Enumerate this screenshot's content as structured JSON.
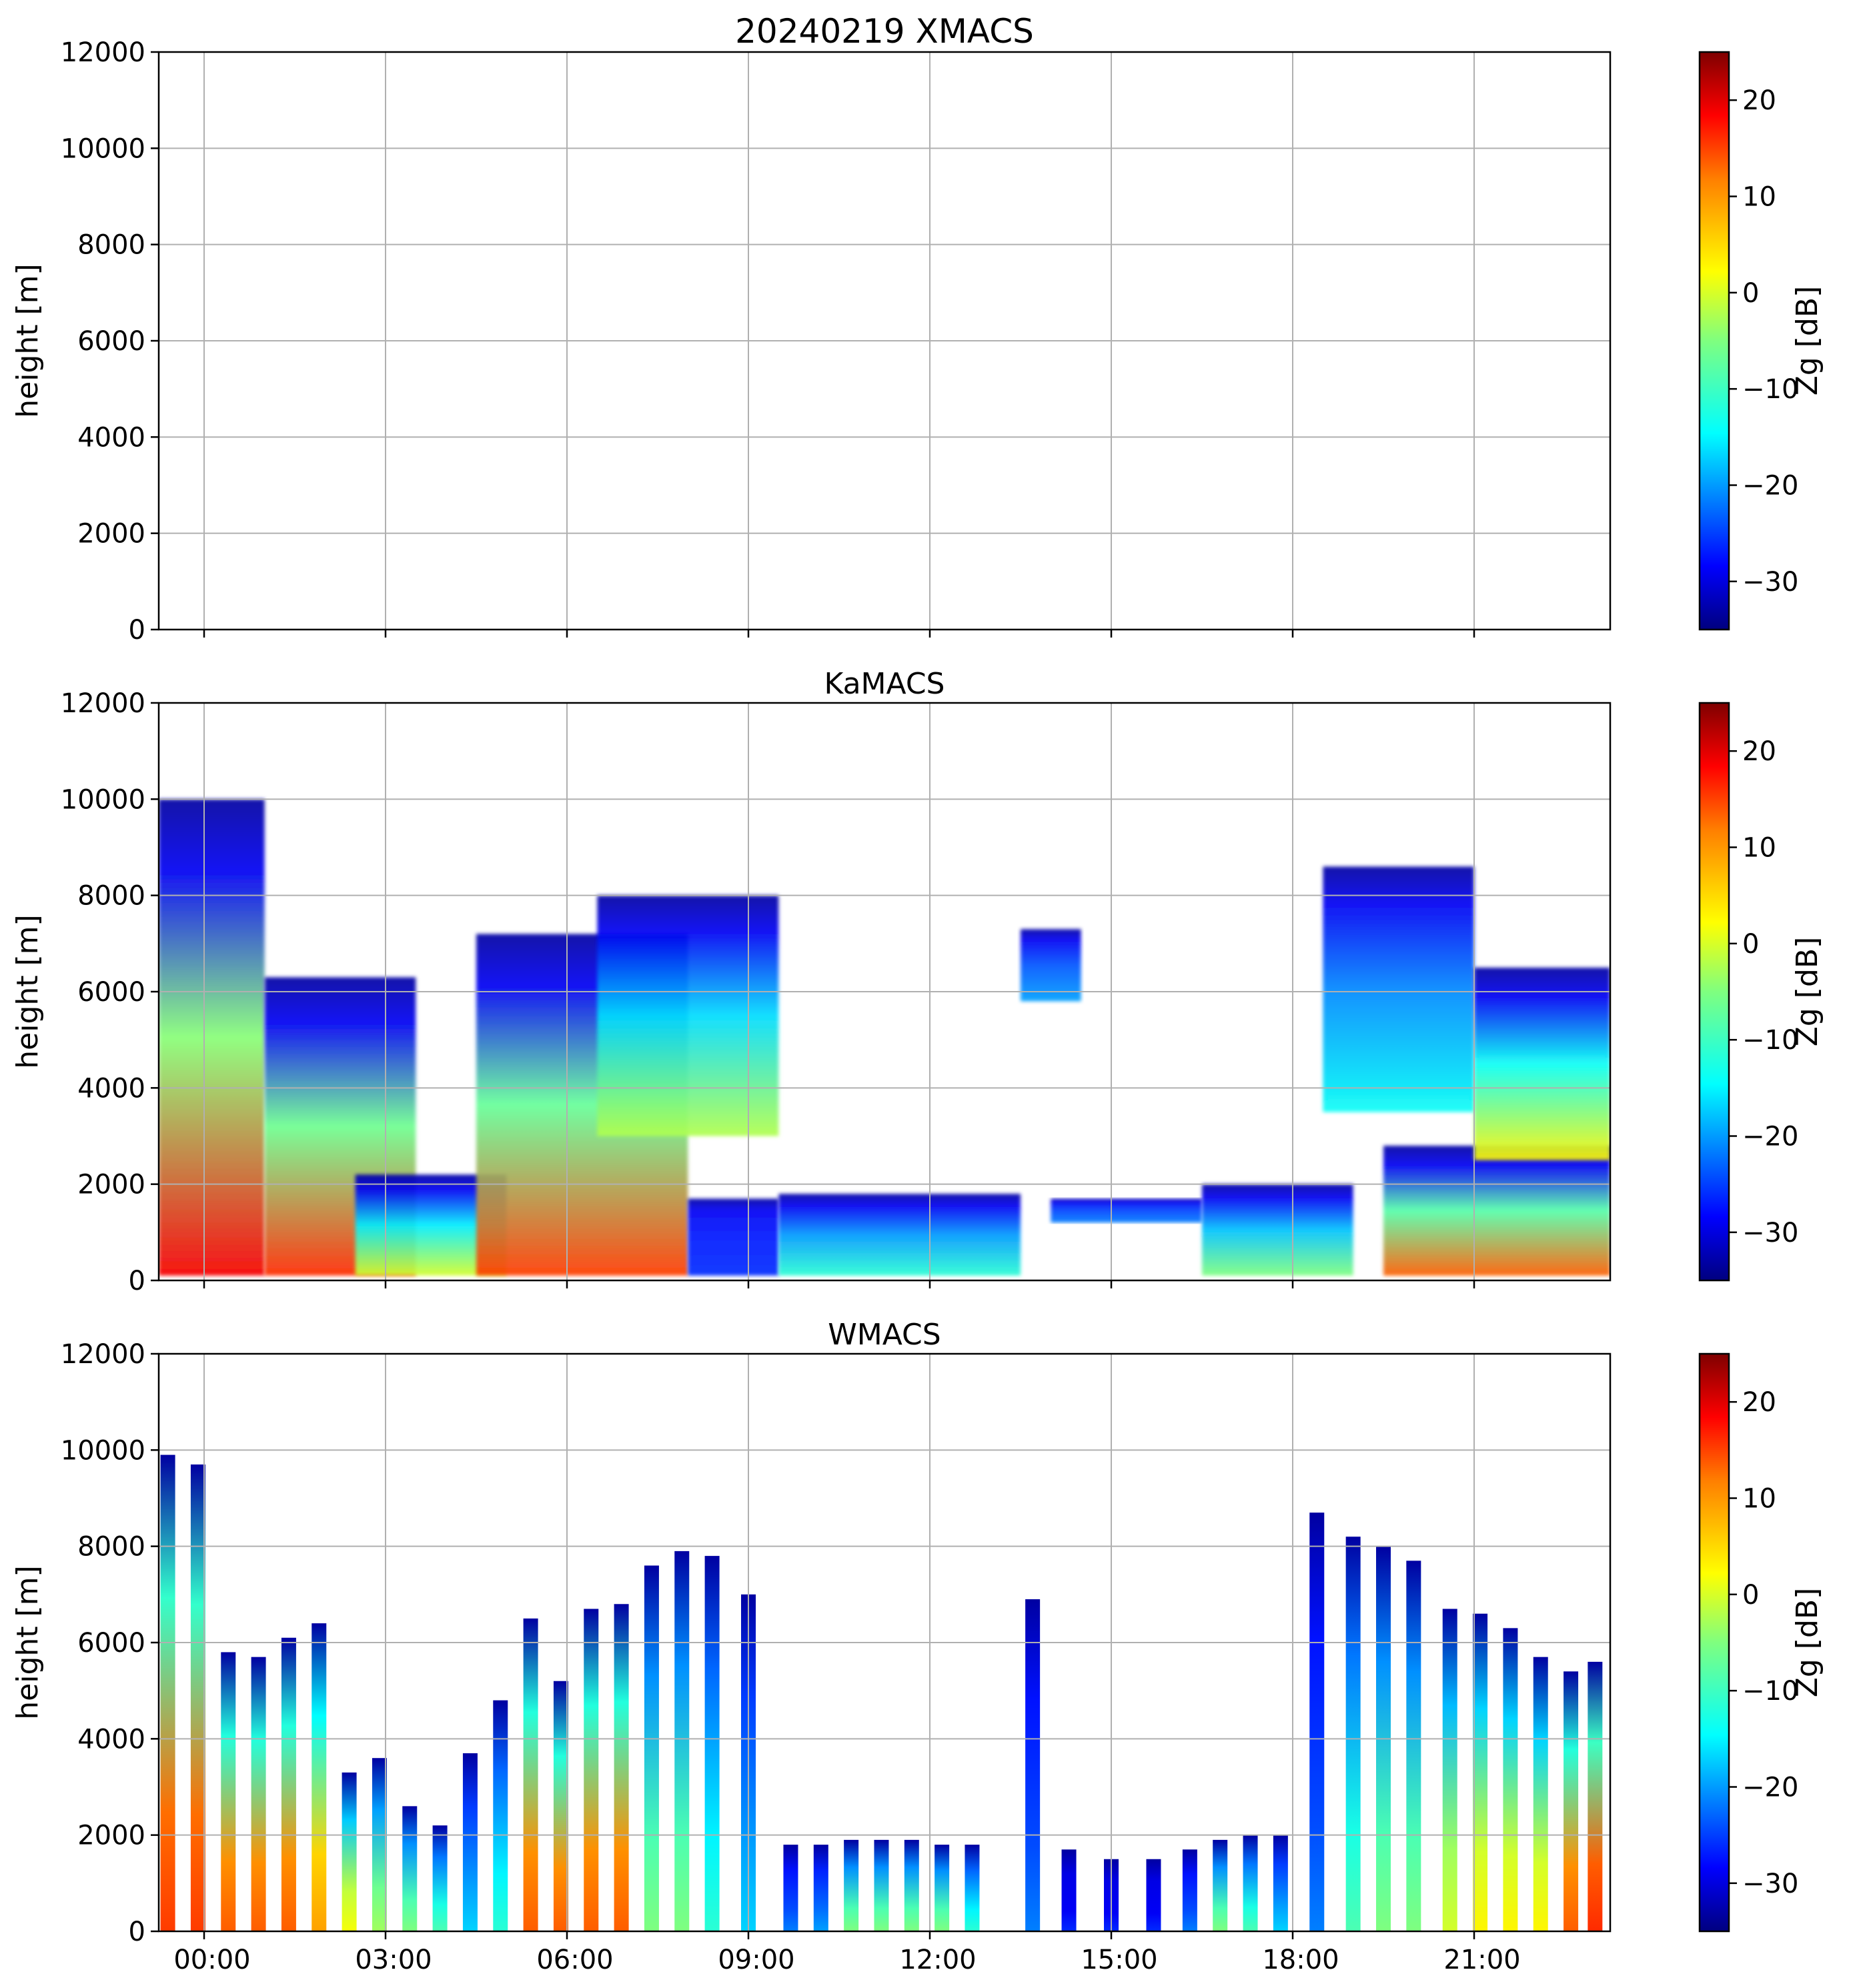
{
  "figure_title": "20240219 XMACS",
  "colors": {
    "jet": [
      "#00007f",
      "#0000ff",
      "#007fff",
      "#00ffff",
      "#7fff7f",
      "#ffff00",
      "#ff7f00",
      "#ff0000",
      "#7f0000"
    ]
  },
  "chart_data": [
    {
      "type": "heatmap",
      "title": "20240219 XMACS",
      "ylabel": "height [m]",
      "colorbar_label": "Zg [dB]",
      "ylim": [
        0,
        12000
      ],
      "xlim_hours": [
        -0.75,
        23.25
      ],
      "yticks": [
        0,
        2000,
        4000,
        6000,
        8000,
        10000,
        12000
      ],
      "xticks_hours": [
        0,
        3,
        6,
        9,
        12,
        15,
        18,
        21
      ],
      "colorbar_range": [
        -35,
        25
      ],
      "colorbar_ticks": [
        -30,
        -20,
        -10,
        0,
        10,
        20
      ],
      "regions": []
    },
    {
      "type": "heatmap",
      "title": "KaMACS",
      "ylabel": "height [m]",
      "colorbar_label": "Zg [dB]",
      "ylim": [
        0,
        12000
      ],
      "xlim_hours": [
        -0.75,
        23.25
      ],
      "yticks": [
        0,
        2000,
        4000,
        6000,
        8000,
        10000,
        12000
      ],
      "xticks_hours": [
        0,
        3,
        6,
        9,
        12,
        15,
        18,
        21
      ],
      "colorbar_range": [
        -35,
        25
      ],
      "colorbar_ticks": [
        -30,
        -20,
        -10,
        0,
        10,
        20
      ],
      "regions": [
        {
          "t0": -0.75,
          "t1": 1.0,
          "h0": 100,
          "h1": 10000,
          "zmax": 18
        },
        {
          "t0": 1.0,
          "t1": 3.5,
          "h0": 100,
          "h1": 6300,
          "zmax": 15
        },
        {
          "t0": 2.5,
          "t1": 5.0,
          "h0": 100,
          "h1": 2200,
          "zmax": 0
        },
        {
          "t0": 4.5,
          "t1": 8.0,
          "h0": 100,
          "h1": 7200,
          "zmax": 14
        },
        {
          "t0": 6.5,
          "t1": 9.5,
          "h0": 3000,
          "h1": 8000,
          "zmax": -2
        },
        {
          "t0": 8.0,
          "t1": 9.5,
          "h0": 100,
          "h1": 1700,
          "zmax": -25
        },
        {
          "t0": 9.5,
          "t1": 13.5,
          "h0": 100,
          "h1": 1800,
          "zmax": -10
        },
        {
          "t0": 13.5,
          "t1": 14.5,
          "h0": 5800,
          "h1": 7300,
          "zmax": -18
        },
        {
          "t0": 14.0,
          "t1": 16.5,
          "h0": 1200,
          "h1": 1700,
          "zmax": -20
        },
        {
          "t0": 16.5,
          "t1": 19.0,
          "h0": 100,
          "h1": 2000,
          "zmax": -5
        },
        {
          "t0": 18.5,
          "t1": 21.0,
          "h0": 3500,
          "h1": 8600,
          "zmax": -12
        },
        {
          "t0": 19.5,
          "t1": 23.25,
          "h0": 100,
          "h1": 2800,
          "zmax": 12
        },
        {
          "t0": 21.0,
          "t1": 23.25,
          "h0": 2500,
          "h1": 6500,
          "zmax": 3
        }
      ]
    },
    {
      "type": "heatmap",
      "title": "WMACS",
      "ylabel": "height [m]",
      "colorbar_label": "Zg [dB]",
      "ylim": [
        0,
        12000
      ],
      "xlim_hours": [
        -0.75,
        23.25
      ],
      "yticks": [
        0,
        2000,
        4000,
        6000,
        8000,
        10000,
        12000
      ],
      "xticks_hours": [
        0,
        3,
        6,
        9,
        12,
        15,
        18,
        21
      ],
      "xtick_labels": [
        "00:00",
        "03:00",
        "06:00",
        "09:00",
        "12:00",
        "15:00",
        "18:00",
        "21:00"
      ],
      "colorbar_range": [
        -35,
        25
      ],
      "colorbar_ticks": [
        -30,
        -20,
        -10,
        0,
        10,
        20
      ],
      "strips": [
        {
          "t": -0.6,
          "top": 9900,
          "zmax": 14
        },
        {
          "t": -0.1,
          "top": 9700,
          "zmax": 14
        },
        {
          "t": 0.4,
          "top": 5800,
          "zmax": 12
        },
        {
          "t": 0.9,
          "top": 5700,
          "zmax": 12
        },
        {
          "t": 1.4,
          "top": 6100,
          "zmax": 12
        },
        {
          "t": 1.9,
          "top": 6400,
          "zmax": 8
        },
        {
          "t": 2.4,
          "top": 3300,
          "zmax": 2
        },
        {
          "t": 2.9,
          "top": 3600,
          "zmax": -3
        },
        {
          "t": 3.4,
          "top": 2600,
          "zmax": -5
        },
        {
          "t": 3.9,
          "top": 2200,
          "zmax": -8
        },
        {
          "t": 4.4,
          "top": 3700,
          "zmax": -15
        },
        {
          "t": 4.9,
          "top": 4800,
          "zmax": -10
        },
        {
          "t": 5.4,
          "top": 6500,
          "zmax": 12
        },
        {
          "t": 5.9,
          "top": 5200,
          "zmax": 12
        },
        {
          "t": 6.4,
          "top": 6700,
          "zmax": 12
        },
        {
          "t": 6.9,
          "top": 6800,
          "zmax": 12
        },
        {
          "t": 7.4,
          "top": 7600,
          "zmax": -5
        },
        {
          "t": 7.9,
          "top": 7900,
          "zmax": -5
        },
        {
          "t": 8.4,
          "top": 7800,
          "zmax": -10
        },
        {
          "t": 9.0,
          "top": 7000,
          "zmax": -15
        },
        {
          "t": 9.7,
          "top": 1800,
          "zmax": -20
        },
        {
          "t": 10.2,
          "top": 1800,
          "zmax": -18
        },
        {
          "t": 10.7,
          "top": 1900,
          "zmax": -5
        },
        {
          "t": 11.2,
          "top": 1900,
          "zmax": -5
        },
        {
          "t": 11.7,
          "top": 1900,
          "zmax": -5
        },
        {
          "t": 12.2,
          "top": 1800,
          "zmax": -5
        },
        {
          "t": 12.7,
          "top": 1800,
          "zmax": -10
        },
        {
          "t": 13.7,
          "top": 6900,
          "zmax": -20
        },
        {
          "t": 14.3,
          "top": 1700,
          "zmax": -25
        },
        {
          "t": 15.0,
          "top": 1500,
          "zmax": -25
        },
        {
          "t": 15.7,
          "top": 1500,
          "zmax": -25
        },
        {
          "t": 16.3,
          "top": 1700,
          "zmax": -20
        },
        {
          "t": 16.8,
          "top": 1900,
          "zmax": -5
        },
        {
          "t": 17.3,
          "top": 2000,
          "zmax": -8
        },
        {
          "t": 17.8,
          "top": 2000,
          "zmax": -15
        },
        {
          "t": 18.4,
          "top": 8700,
          "zmax": -20
        },
        {
          "t": 19.0,
          "top": 8200,
          "zmax": -8
        },
        {
          "t": 19.5,
          "top": 8000,
          "zmax": -5
        },
        {
          "t": 20.0,
          "top": 7700,
          "zmax": -5
        },
        {
          "t": 20.6,
          "top": 6700,
          "zmax": 0
        },
        {
          "t": 21.1,
          "top": 6600,
          "zmax": 3
        },
        {
          "t": 21.6,
          "top": 6300,
          "zmax": 3
        },
        {
          "t": 22.1,
          "top": 5700,
          "zmax": 3
        },
        {
          "t": 22.6,
          "top": 5400,
          "zmax": 12
        },
        {
          "t": 23.0,
          "top": 5600,
          "zmax": 15
        }
      ]
    }
  ]
}
